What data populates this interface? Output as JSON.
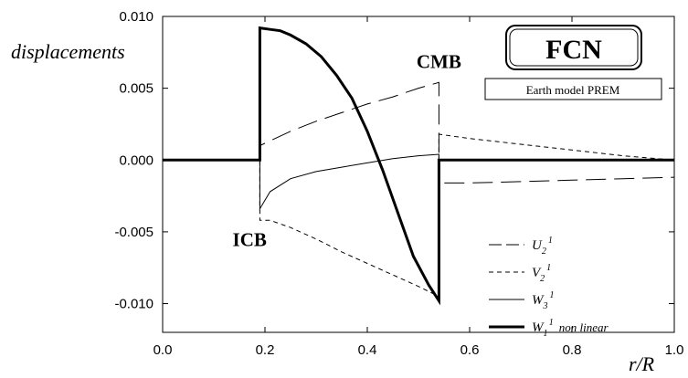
{
  "chart_data": {
    "type": "line",
    "title": "FCN",
    "subtitle": "Earth model PREM",
    "xlabel": "r/R",
    "ylabel": "displacements",
    "xlim": [
      0.0,
      1.0
    ],
    "ylim": [
      -0.012,
      0.01
    ],
    "x_ticks": [
      "0.0",
      "0.2",
      "0.4",
      "0.6",
      "0.8",
      "1.0"
    ],
    "x_tick_values": [
      0.0,
      0.2,
      0.4,
      0.6,
      0.8,
      1.0
    ],
    "y_ticks": [
      "0.010",
      "0.005",
      "0.000",
      "-0.005",
      "-0.010"
    ],
    "y_tick_values": [
      0.01,
      0.005,
      0.0,
      -0.005,
      -0.01
    ],
    "grid": false,
    "legend_position": "bottom-right",
    "annotations": [
      {
        "text": "CMB",
        "x": 0.54,
        "y": 0.0064
      },
      {
        "text": "ICB",
        "x": 0.17,
        "y": -0.006
      }
    ],
    "series": [
      {
        "id": "U21",
        "name": "U",
        "sub": "2",
        "sup": "1",
        "style": "long-dash",
        "width": 1,
        "segments": [
          [
            [
              0.0,
              0.0
            ],
            [
              0.19,
              0.0
            ]
          ],
          [
            [
              0.19,
              0.0
            ],
            [
              0.19,
              0.001
            ],
            [
              0.25,
              0.002
            ],
            [
              0.3,
              0.0027
            ],
            [
              0.35,
              0.0033
            ],
            [
              0.4,
              0.0039
            ],
            [
              0.45,
              0.0044
            ],
            [
              0.5,
              0.005
            ],
            [
              0.54,
              0.0054
            ],
            [
              0.54,
              0.0
            ]
          ],
          [
            [
              0.54,
              0.0
            ],
            [
              0.54,
              -0.0016
            ],
            [
              0.6,
              -0.0016
            ],
            [
              0.7,
              -0.0015
            ],
            [
              0.8,
              -0.0014
            ],
            [
              0.9,
              -0.0013
            ],
            [
              1.0,
              -0.0012
            ]
          ]
        ]
      },
      {
        "id": "V21",
        "name": "V",
        "sub": "2",
        "sup": "1",
        "style": "short-dash",
        "width": 1,
        "segments": [
          [
            [
              0.19,
              0.0
            ],
            [
              0.19,
              -0.0042
            ],
            [
              0.21,
              -0.0042
            ],
            [
              0.25,
              -0.0047
            ],
            [
              0.3,
              -0.0055
            ],
            [
              0.35,
              -0.0064
            ],
            [
              0.4,
              -0.0072
            ],
            [
              0.45,
              -0.008
            ],
            [
              0.5,
              -0.0088
            ],
            [
              0.54,
              -0.0095
            ],
            [
              0.54,
              0.0
            ]
          ],
          [
            [
              0.54,
              0.0
            ],
            [
              0.54,
              0.0018
            ],
            [
              0.6,
              0.0015
            ],
            [
              0.7,
              0.0011
            ],
            [
              0.8,
              0.0007
            ],
            [
              0.9,
              0.0003
            ],
            [
              1.0,
              0.0
            ]
          ]
        ]
      },
      {
        "id": "W31",
        "name": "W",
        "sub": "3",
        "sup": "1",
        "style": "solid",
        "width": 1,
        "segments": [
          [
            [
              0.19,
              0.0
            ],
            [
              0.19,
              -0.0034
            ],
            [
              0.21,
              -0.0022
            ],
            [
              0.25,
              -0.0013
            ],
            [
              0.3,
              -0.0008
            ],
            [
              0.35,
              -0.0005
            ],
            [
              0.4,
              -0.0002
            ],
            [
              0.45,
              0.0001
            ],
            [
              0.5,
              0.0003
            ],
            [
              0.54,
              0.0004
            ],
            [
              0.54,
              0.0
            ]
          ]
        ]
      },
      {
        "id": "W11",
        "name": "W",
        "sub": "1",
        "sup": "1",
        "extra": "non linear",
        "style": "solid",
        "width": 3,
        "segments": [
          [
            [
              0.0,
              0.0
            ],
            [
              0.19,
              0.0
            ],
            [
              0.19,
              0.0092
            ],
            [
              0.21,
              0.0091
            ],
            [
              0.23,
              0.009
            ],
            [
              0.25,
              0.0087
            ],
            [
              0.28,
              0.0081
            ],
            [
              0.31,
              0.0072
            ],
            [
              0.34,
              0.0059
            ],
            [
              0.37,
              0.0043
            ],
            [
              0.4,
              0.002
            ],
            [
              0.43,
              -0.0007
            ],
            [
              0.46,
              -0.0037
            ],
            [
              0.49,
              -0.0067
            ],
            [
              0.52,
              -0.0087
            ],
            [
              0.54,
              -0.0098
            ],
            [
              0.54,
              0.0
            ],
            [
              1.0,
              0.0
            ]
          ]
        ]
      }
    ]
  }
}
